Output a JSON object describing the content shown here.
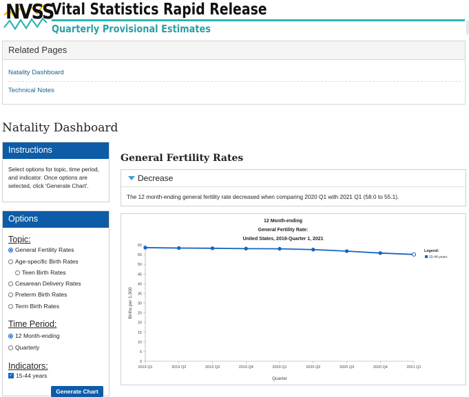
{
  "header": {
    "logo_text": "NVSS",
    "title": "Vital Statistics Rapid Release",
    "subtitle": "Quarterly Provisional Estimates",
    "accent_color": "#2bb5b5"
  },
  "related_pages": {
    "title": "Related Pages",
    "links": [
      "Natality Dashboard",
      "Technical Notes"
    ]
  },
  "dashboard_title": "Natality Dashboard",
  "instructions": {
    "title": "Instructions",
    "text": "Select options for topic, time period, and indicator. Once options are selected, click 'Generate Chart'."
  },
  "options": {
    "title": "Options",
    "topic_label": "Topic:",
    "topics": [
      {
        "label": "General Fertility Rates",
        "selected": true
      },
      {
        "label": "Age-specific Birth Rates",
        "selected": false
      },
      {
        "label": "Teen Birth Rates",
        "selected": false
      },
      {
        "label": "Cesarean Delivery Rates",
        "selected": false
      },
      {
        "label": "Preterm Birth Rates",
        "selected": false
      },
      {
        "label": "Term Birth Rates",
        "selected": false
      }
    ],
    "time_period_label": "Time Period:",
    "time_periods": [
      {
        "label": "12 Month-ending",
        "selected": true
      },
      {
        "label": "Quarterly",
        "selected": false
      }
    ],
    "indicators_label": "Indicators:",
    "indicators": [
      {
        "label": "15-44 years",
        "checked": true
      }
    ],
    "generate_button": "Generate Chart"
  },
  "main": {
    "title": "General Fertility Rates",
    "trend_label": "Decrease",
    "trend_text": "The 12 month-ending general fertility rate decreased when comparing 2020 Q1 with 2021 Q1 (58.0 to 55.1)."
  },
  "chart_data": {
    "type": "line",
    "title_lines": [
      "12 Month-ending",
      "General Fertility Rate:",
      "United States, 2019-Quarter 1, 2021"
    ],
    "xlabel": "Quarter",
    "ylabel": "Births per 1,000",
    "categories": [
      "2019 Q1",
      "2019 Q2",
      "2019 Q3",
      "2019 Q4",
      "2020 Q1",
      "2020 Q2",
      "2020 Q3",
      "2020 Q4",
      "2021 Q1"
    ],
    "series": [
      {
        "name": "15-44 years",
        "values": [
          58.6,
          58.4,
          58.3,
          58.1,
          58.0,
          57.6,
          56.8,
          55.8,
          55.1
        ],
        "color": "#1565c0"
      }
    ],
    "ylim": [
      0,
      60
    ],
    "yticks": [
      0,
      5,
      10,
      15,
      20,
      25,
      30,
      35,
      40,
      45,
      50,
      55,
      60
    ],
    "legend_title": "Legend:",
    "legend_position": "right",
    "grid": false
  }
}
